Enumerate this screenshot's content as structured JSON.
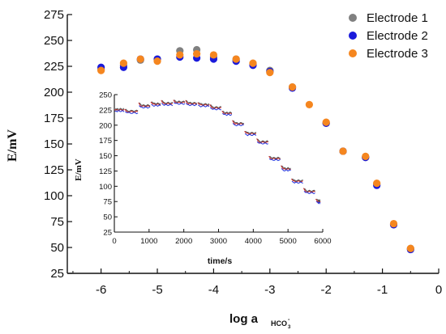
{
  "chart_data": [
    {
      "type": "scatter",
      "xlabel": "log a",
      "xlabel_sub": "HCO",
      "xlabel_subsub": "3",
      "xlabel_sup": "-",
      "ylabel": "E/mV",
      "xlim": [
        -6.6,
        0
      ],
      "ylim": [
        25,
        275
      ],
      "xticks": [
        -6,
        -5,
        -4,
        -3,
        -2,
        -1,
        0
      ],
      "yticks": [
        25,
        50,
        75,
        100,
        125,
        150,
        175,
        200,
        225,
        250,
        275
      ],
      "legend_position": "top-right",
      "series": [
        {
          "name": "Electrode 1",
          "color": "#808080",
          "points": [
            [
              -6.0,
              222
            ],
            [
              -5.6,
              226
            ],
            [
              -5.3,
              231
            ],
            [
              -5.0,
              232
            ],
            [
              -4.6,
              240
            ],
            [
              -4.3,
              241
            ],
            [
              -4.0,
              234
            ],
            [
              -3.6,
              232
            ],
            [
              -3.3,
              227
            ],
            [
              -3.0,
              221
            ],
            [
              -2.6,
              205
            ],
            [
              -2.0,
              170
            ],
            [
              -1.7,
              143
            ],
            [
              -1.3,
              137
            ],
            [
              -1.1,
              111
            ],
            [
              -0.8,
              72
            ],
            [
              -0.5,
              49
            ]
          ]
        },
        {
          "name": "Electrode 2",
          "color": "#1a1adb",
          "points": [
            [
              -6.0,
              224
            ],
            [
              -5.6,
              224
            ],
            [
              -5.3,
              232
            ],
            [
              -5.0,
              232
            ],
            [
              -4.6,
              234
            ],
            [
              -4.3,
              233
            ],
            [
              -4.0,
              232
            ],
            [
              -3.6,
              230
            ],
            [
              -3.3,
              226
            ],
            [
              -3.0,
              220
            ],
            [
              -2.6,
              204
            ],
            [
              -2.0,
              170
            ],
            [
              -1.7,
              143
            ],
            [
              -1.3,
              137
            ],
            [
              -1.1,
              110
            ],
            [
              -0.8,
              72
            ],
            [
              -0.5,
              48
            ]
          ]
        },
        {
          "name": "Electrode 3",
          "color": "#f5861f",
          "points": [
            [
              -6.0,
              221
            ],
            [
              -5.6,
              228
            ],
            [
              -5.3,
              232
            ],
            [
              -5.0,
              230
            ],
            [
              -4.6,
              236
            ],
            [
              -4.3,
              237
            ],
            [
              -4.0,
              236
            ],
            [
              -3.6,
              232
            ],
            [
              -3.3,
              228
            ],
            [
              -3.0,
              219
            ],
            [
              -2.6,
              205
            ],
            [
              -2.3,
              188
            ],
            [
              -2.0,
              171
            ],
            [
              -1.7,
              143
            ],
            [
              -1.3,
              138
            ],
            [
              -1.1,
              112
            ],
            [
              -0.8,
              73
            ],
            [
              -0.5,
              49
            ]
          ]
        }
      ]
    },
    {
      "type": "line",
      "xlabel": "time/s",
      "ylabel": "E/mV",
      "xlim": [
        0,
        6000
      ],
      "ylim": [
        25,
        250
      ],
      "xticks": [
        0,
        1000,
        2000,
        3000,
        4000,
        5000,
        6000
      ],
      "yticks": [
        25,
        50,
        75,
        100,
        125,
        150,
        175,
        200,
        225,
        250
      ],
      "series": [
        {
          "color": "#cc2222"
        },
        {
          "color": "#2233dd"
        },
        {
          "color": "#555555"
        }
      ],
      "steps": [
        [
          0,
          225
        ],
        [
          300,
          222
        ],
        [
          700,
          231
        ],
        [
          1050,
          234
        ],
        [
          1350,
          235
        ],
        [
          1700,
          237
        ],
        [
          2050,
          235
        ],
        [
          2400,
          233
        ],
        [
          2750,
          228
        ],
        [
          3100,
          219
        ],
        [
          3400,
          202
        ],
        [
          3750,
          186
        ],
        [
          4100,
          172
        ],
        [
          4450,
          145
        ],
        [
          4800,
          128
        ],
        [
          5100,
          108
        ],
        [
          5450,
          91
        ],
        [
          5800,
          75
        ]
      ],
      "step_end": 5950
    }
  ]
}
